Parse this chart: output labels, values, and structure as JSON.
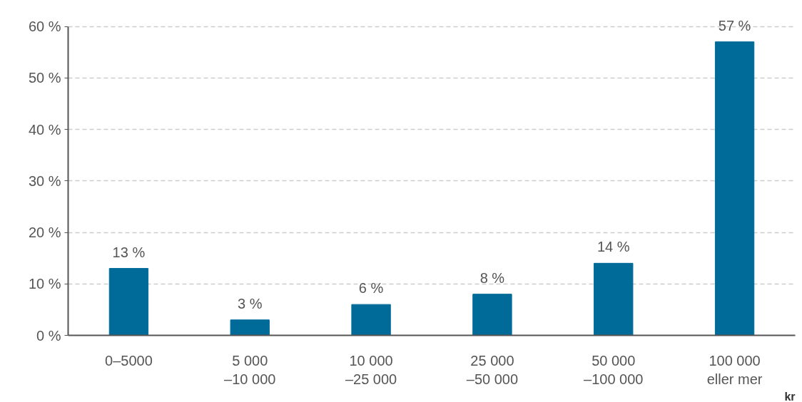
{
  "chart_data": {
    "type": "bar",
    "categories": [
      "0–5000",
      "5 000\n–10 000",
      "10 000\n–25 000",
      "25 000\n–50 000",
      "50 000\n–100 000",
      "100 000\neller mer"
    ],
    "values": [
      13,
      3,
      6,
      8,
      14,
      57
    ],
    "color": "#006a99",
    "data_labels": true,
    "value_labels": [
      "13 %",
      "3 %",
      "6 %",
      "8 %",
      "14 %",
      "57 %"
    ],
    "xlabel": "kr",
    "ylim": [
      0,
      60
    ],
    "yticks": [
      {
        "value": 0,
        "label": "0 %"
      },
      {
        "value": 10,
        "label": "10 %"
      },
      {
        "value": 20,
        "label": "20 %"
      },
      {
        "value": 30,
        "label": "30 %"
      },
      {
        "value": 40,
        "label": "40 %"
      },
      {
        "value": 50,
        "label": "50 %"
      },
      {
        "value": 60,
        "label": "60 %"
      }
    ],
    "grid": "y"
  }
}
